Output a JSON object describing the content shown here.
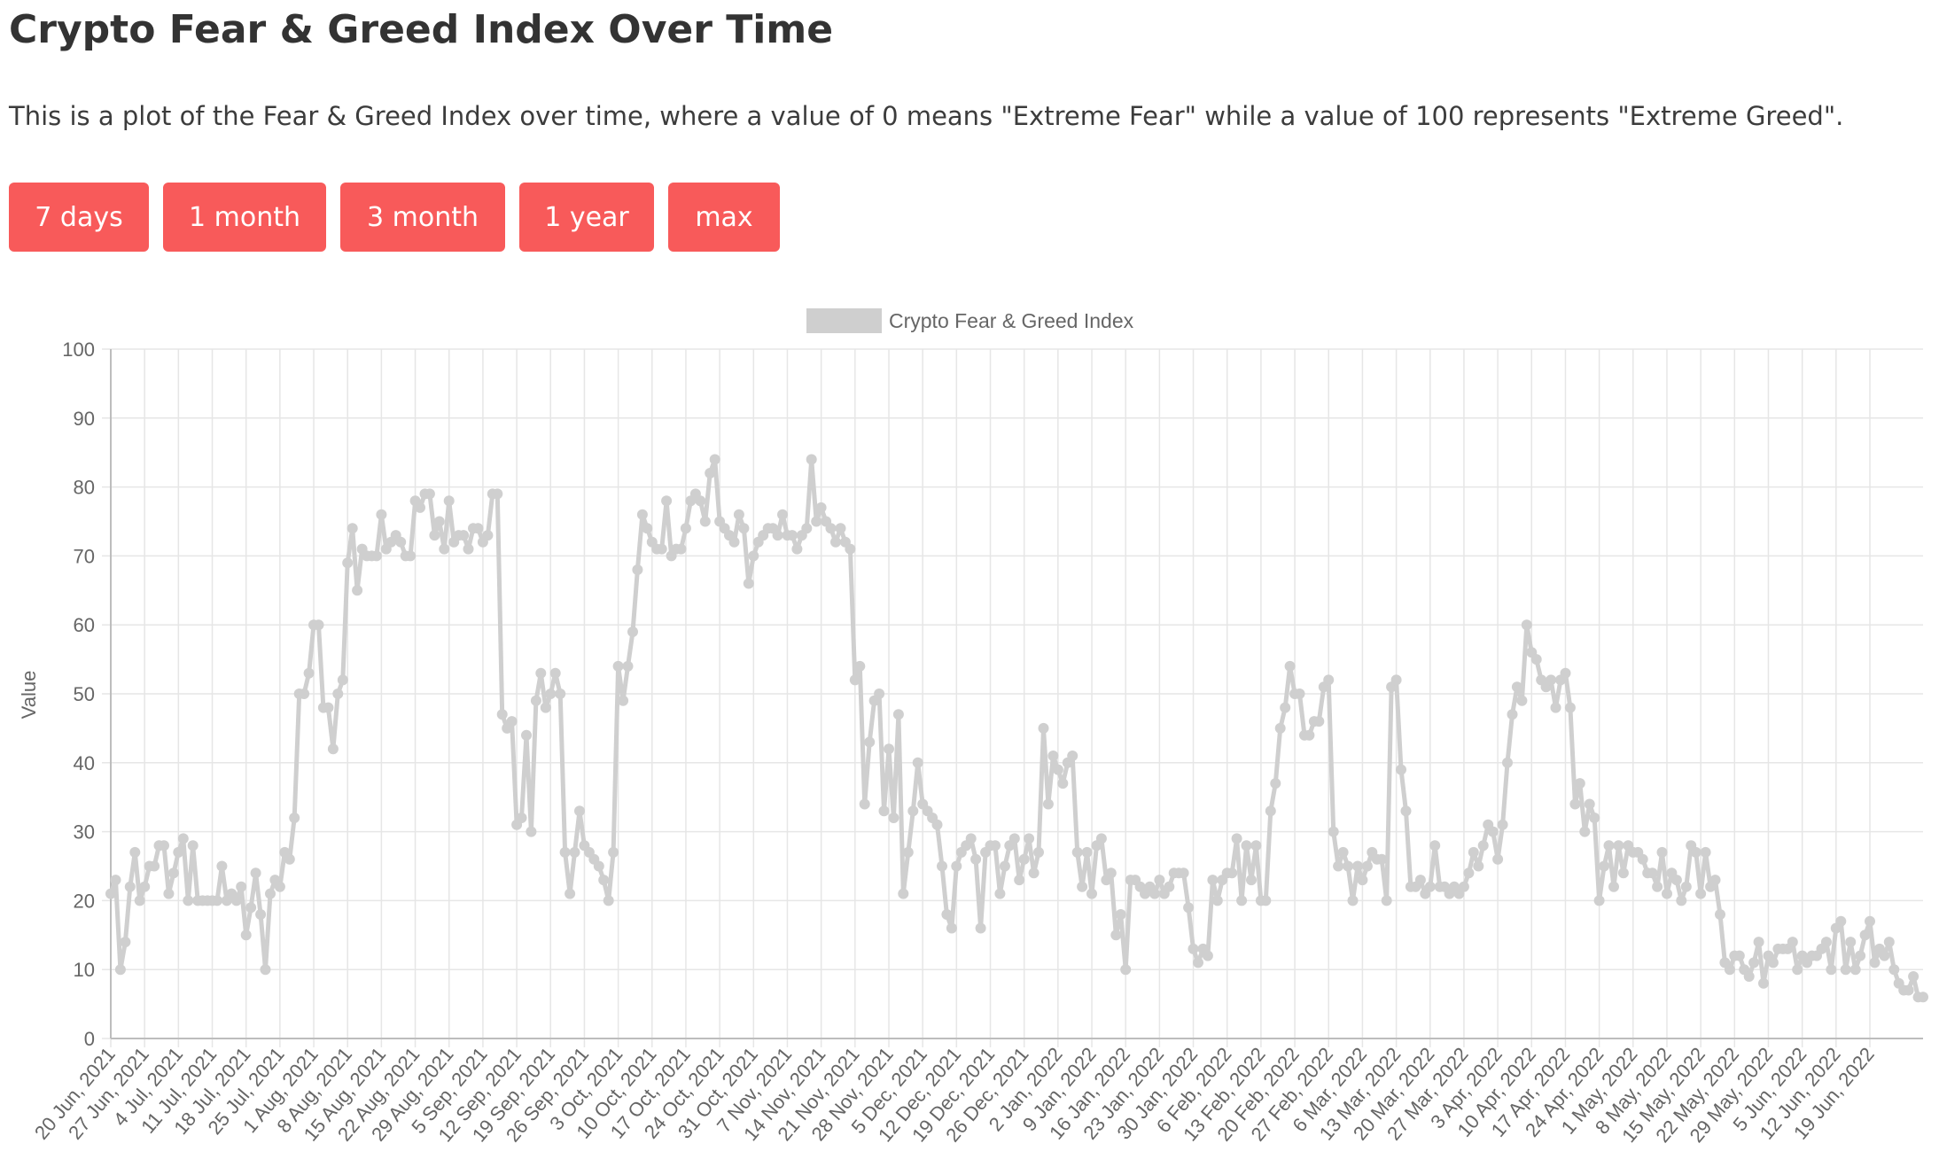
{
  "header": {
    "title": "Crypto Fear & Greed Index Over Time",
    "description": "This is a plot of the Fear & Greed Index over time, where a value of 0 means \"Extreme Fear\" while a value of 100 represents \"Extreme Greed\"."
  },
  "range_buttons": [
    "7 days",
    "1 month",
    "3 month",
    "1 year",
    "max"
  ],
  "colors": {
    "button_bg": "#f85a5a",
    "button_text": "#ffffff",
    "series": "#cfcfcf",
    "grid": "#e6e6e6"
  },
  "chart_data": {
    "type": "line",
    "title": "",
    "xlabel": "",
    "ylabel": "Value",
    "ylim": [
      0,
      100
    ],
    "yticks": [
      0,
      10,
      20,
      30,
      40,
      50,
      60,
      70,
      80,
      90,
      100
    ],
    "grid": true,
    "legend_position": "top",
    "x_tick_labels": [
      "20 Jun, 2021",
      "27 Jun, 2021",
      "4 Jul, 2021",
      "11 Jul, 2021",
      "18 Jul, 2021",
      "25 Jul, 2021",
      "1 Aug, 2021",
      "8 Aug, 2021",
      "15 Aug, 2021",
      "22 Aug, 2021",
      "29 Aug, 2021",
      "5 Sep, 2021",
      "12 Sep, 2021",
      "19 Sep, 2021",
      "26 Sep, 2021",
      "3 Oct, 2021",
      "10 Oct, 2021",
      "17 Oct, 2021",
      "24 Oct, 2021",
      "31 Oct, 2021",
      "7 Nov, 2021",
      "14 Nov, 2021",
      "21 Nov, 2021",
      "28 Nov, 2021",
      "5 Dec, 2021",
      "12 Dec, 2021",
      "19 Dec, 2021",
      "26 Dec, 2021",
      "2 Jan, 2022",
      "9 Jan, 2022",
      "16 Jan, 2022",
      "23 Jan, 2022",
      "30 Jan, 2022",
      "6 Feb, 2022",
      "13 Feb, 2022",
      "20 Feb, 2022",
      "27 Feb, 2022",
      "6 Mar, 2022",
      "13 Mar, 2022",
      "20 Mar, 2022",
      "27 Mar, 2022",
      "3 Apr, 2022",
      "10 Apr, 2022",
      "17 Apr, 2022",
      "24 Apr, 2022",
      "1 May, 2022",
      "8 May, 2022",
      "15 May, 2022",
      "22 May, 2022",
      "29 May, 2022",
      "5 Jun, 2022",
      "12 Jun, 2022",
      "19 Jun, 2022"
    ],
    "series": [
      {
        "name": "Crypto Fear & Greed Index",
        "color": "#cfcfcf",
        "values": [
          21,
          23,
          10,
          14,
          22,
          27,
          20,
          22,
          25,
          25,
          28,
          28,
          21,
          24,
          27,
          29,
          20,
          28,
          20,
          20,
          20,
          20,
          20,
          25,
          20,
          21,
          20,
          22,
          15,
          19,
          24,
          18,
          10,
          21,
          23,
          22,
          27,
          26,
          32,
          50,
          50,
          53,
          60,
          60,
          48,
          48,
          42,
          50,
          52,
          69,
          74,
          65,
          71,
          70,
          70,
          70,
          76,
          71,
          72,
          73,
          72,
          70,
          70,
          78,
          77,
          79,
          79,
          73,
          75,
          71,
          78,
          72,
          73,
          73,
          71,
          74,
          74,
          72,
          73,
          79,
          79,
          47,
          45,
          46,
          31,
          32,
          44,
          30,
          49,
          53,
          48,
          50,
          53,
          50,
          27,
          21,
          27,
          33,
          28,
          27,
          26,
          25,
          23,
          20,
          27,
          54,
          49,
          54,
          59,
          68,
          76,
          74,
          72,
          71,
          71,
          78,
          70,
          71,
          71,
          74,
          78,
          79,
          78,
          75,
          82,
          84,
          75,
          74,
          73,
          72,
          76,
          74,
          66,
          70,
          72,
          73,
          74,
          74,
          73,
          76,
          73,
          73,
          71,
          73,
          74,
          84,
          75,
          77,
          75,
          74,
          72,
          74,
          72,
          71,
          52,
          54,
          34,
          43,
          49,
          50,
          33,
          42,
          32,
          47,
          21,
          27,
          33,
          40,
          34,
          33,
          32,
          31,
          25,
          18,
          16,
          25,
          27,
          28,
          29,
          26,
          16,
          27,
          28,
          28,
          21,
          25,
          28,
          29,
          23,
          26,
          29,
          24,
          27,
          45,
          34,
          41,
          39,
          37,
          40,
          41,
          27,
          22,
          27,
          21,
          28,
          29,
          23,
          24,
          15,
          18,
          10,
          23,
          23,
          22,
          21,
          22,
          21,
          23,
          21,
          22,
          24,
          24,
          24,
          19,
          13,
          11,
          13,
          12,
          23,
          20,
          23,
          24,
          24,
          29,
          20,
          28,
          23,
          28,
          20,
          20,
          33,
          37,
          45,
          48,
          54,
          50,
          50,
          44,
          44,
          46,
          46,
          51,
          52,
          30,
          25,
          27,
          25,
          20,
          25,
          23,
          25,
          27,
          26,
          26,
          20,
          51,
          52,
          39,
          33,
          22,
          22,
          23,
          21,
          22,
          28,
          22,
          22,
          21,
          22,
          21,
          22,
          24,
          27,
          25,
          28,
          31,
          30,
          26,
          31,
          40,
          47,
          51,
          49,
          60,
          56,
          55,
          52,
          51,
          52,
          48,
          52,
          53,
          48,
          34,
          37,
          30,
          34,
          32,
          20,
          25,
          28,
          22,
          28,
          24,
          28,
          27,
          27,
          26,
          24,
          24,
          22,
          27,
          21,
          24,
          23,
          20,
          22,
          28,
          27,
          21,
          27,
          22,
          23,
          18,
          11,
          10,
          12,
          12,
          10,
          9,
          11,
          14,
          8,
          12,
          11,
          13,
          13,
          13,
          14,
          10,
          12,
          11,
          12,
          12,
          13,
          14,
          10,
          16,
          17,
          10,
          14,
          10,
          12,
          15,
          17,
          11,
          13,
          12,
          14,
          10,
          8,
          7,
          7,
          9,
          6,
          6
        ]
      }
    ]
  }
}
